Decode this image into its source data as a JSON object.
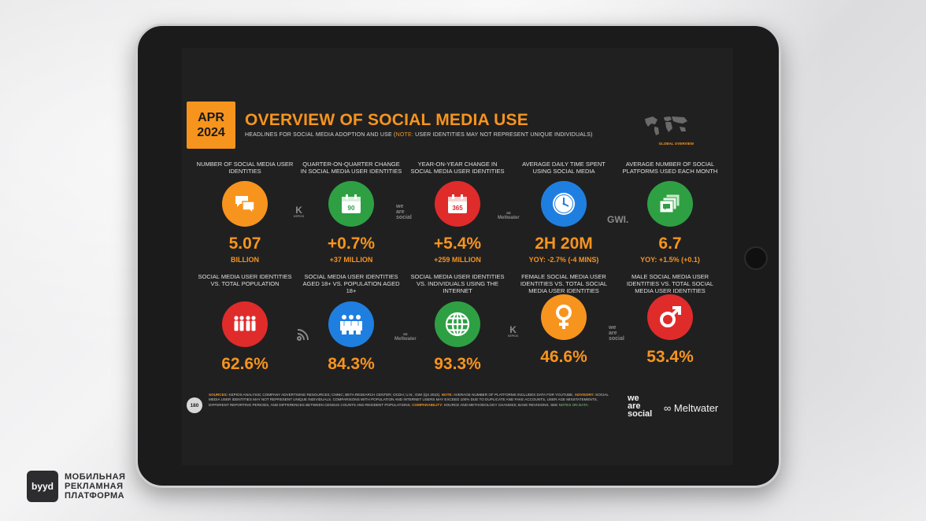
{
  "header": {
    "date_month": "APR",
    "date_year": "2024",
    "title": "OVERVIEW OF SOCIAL MEDIA USE",
    "subtitle_prefix": "HEADLINES FOR SOCIAL MEDIA ADOPTION AND USE (",
    "subtitle_note": "NOTE:",
    "subtitle_suffix": " USER IDENTITIES MAY NOT REPRESENT UNIQUE INDIVIDUALS)",
    "map_label": "GLOBAL OVERVIEW"
  },
  "row1": [
    {
      "label": "NUMBER OF SOCIAL MEDIA USER IDENTITIES",
      "value": "5.07",
      "sub": "BILLION",
      "color": "#f7941d",
      "icon": "speech-bubbles-icon"
    },
    {
      "label": "QUARTER-ON-QUARTER CHANGE IN SOCIAL MEDIA USER IDENTITIES",
      "value": "+0.7%",
      "sub": "+37 MILLION",
      "color": "#2ea043",
      "icon": "calendar-90-icon",
      "icon_text": "90"
    },
    {
      "label": "YEAR-ON-YEAR CHANGE IN SOCIAL MEDIA USER IDENTITIES",
      "value": "+5.4%",
      "sub": "+259 MILLION",
      "color": "#e02b2b",
      "icon": "calendar-365-icon",
      "icon_text": "365"
    },
    {
      "label": "AVERAGE DAILY TIME SPENT USING SOCIAL MEDIA",
      "value": "2H 20M",
      "sub": "YOY: -2.7% (-4 MINS)",
      "color": "#1f7fe0",
      "icon": "clock-icon"
    },
    {
      "label": "AVERAGE NUMBER OF SOCIAL PLATFORMS USED EACH MONTH",
      "value": "6.7",
      "sub": "YOY: +1.5% (+0.1)",
      "color": "#2ea043",
      "icon": "stacked-windows-icon"
    }
  ],
  "row2": [
    {
      "label": "SOCIAL MEDIA USER IDENTITIES vs. TOTAL POPULATION",
      "value": "62.6%",
      "color": "#e02b2b",
      "icon": "crowd-icon"
    },
    {
      "label": "SOCIAL MEDIA USER IDENTITIES AGED 18+ vs. POPULATION AGED 18+",
      "value": "84.3%",
      "color": "#1f7fe0",
      "icon": "adults-icon"
    },
    {
      "label": "SOCIAL MEDIA USER IDENTITIES vs. INDIVIDUALS USING THE INTERNET",
      "value": "93.3%",
      "color": "#2ea043",
      "icon": "globe-icon"
    },
    {
      "label": "FEMALE SOCIAL MEDIA USER IDENTITIES vs. TOTAL SOCIAL MEDIA USER IDENTITIES",
      "value": "46.6%",
      "color": "#f7941d",
      "icon": "female-symbol-icon"
    },
    {
      "label": "MALE SOCIAL MEDIA USER IDENTITIES vs. TOTAL SOCIAL MEDIA USER IDENTITIES",
      "value": "53.4%",
      "color": "#e02b2b",
      "icon": "male-symbol-icon"
    }
  ],
  "partners": {
    "kepios": "K",
    "kepios_label": "KEPIOS",
    "was_line1": "we",
    "was_line2": "are",
    "was_line3": "social",
    "meltwater": "Meltwater",
    "gwi": "GWI."
  },
  "footer": {
    "page_number": "180",
    "sources_label": "SOURCES:",
    "sources_text": " KEPIOS ANALYSIS; COMPANY ADVERTISING RESOURCES; CNNIC; BETA RESEARCH CENTER; OCDH; U.N.; GWI (Q4 2023). ",
    "note_label": "NOTE:",
    "note_text": " AVERAGE NUMBER OF PLATFORMS INCLUDES DATA FOR YOUTUBE. ",
    "advisory_label": "ADVISORY:",
    "advisory_text": " SOCIAL MEDIA USER IDENTITIES MAY NOT REPRESENT UNIQUE INDIVIDUALS. COMPARISONS WITH POPULATION AND INTERNET USERS MAY EXCEED 100% DUE TO DUPLICATE AND FAKE ACCOUNTS, USER AGE MISSTATEMENTS, DIFFERENT REPORTING PERIODS, AND DIFFERENCES BETWEEN CENSUS COUNTS AND RESIDENT POPULATIONS. ",
    "comparability_label": "COMPARABILITY:",
    "comparability_text": " SOURCE AND METHODOLOGY CHANGES; BASE REVISIONS. SEE ",
    "notes_link": "NOTES ON DATA",
    "end": ".",
    "logo_was_1": "we",
    "logo_was_2": "are",
    "logo_was_3": "social",
    "logo_meltwater": "Meltwater"
  },
  "brand": {
    "logo": "byyd",
    "line1": "МОБИЛЬНАЯ",
    "line2": "РЕКЛАМНАЯ",
    "line3": "ПЛАТФОРМА"
  }
}
